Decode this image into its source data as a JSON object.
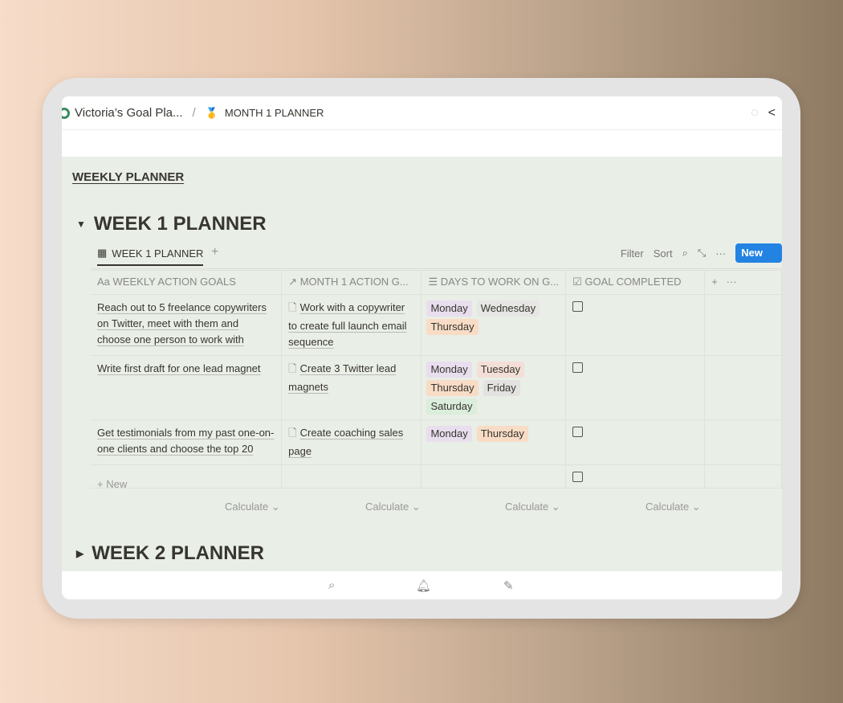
{
  "breadcrumb": {
    "workspace": "Victoria’s Goal Pla...",
    "separator": "/",
    "page_icon": "🥇",
    "page": "MONTH 1 PLANNER"
  },
  "section_link": "WEEKLY PLANNER",
  "week1": {
    "title": "WEEK 1 PLANNER",
    "view_tab": "WEEK 1 PLANNER",
    "toolbar": {
      "filter": "Filter",
      "sort": "Sort",
      "new": "New"
    },
    "columns": [
      {
        "icon": "Aa",
        "label": "WEEKLY ACTION GOALS"
      },
      {
        "icon": "↗",
        "label": "MONTH 1 ACTION G..."
      },
      {
        "icon": "☰",
        "label": "DAYS TO WORK ON G..."
      },
      {
        "icon": "☑",
        "label": "GOAL COMPLETED"
      }
    ],
    "rows": [
      {
        "goal": "Reach out to 5 freelance copywriters on Twitter, meet with them and choose one person to work with",
        "relation": "Work with a copywriter to create full launch email sequence",
        "days": [
          "Monday",
          "Wednesday",
          "Thursday"
        ],
        "completed": false
      },
      {
        "goal": "Write first draft for one lead magnet",
        "relation": "Create 3 Twitter lead magnets",
        "days": [
          "Monday",
          "Tuesday",
          "Thursday",
          "Friday",
          "Saturday"
        ],
        "completed": false
      },
      {
        "goal": "Get testimonials from my past one-on-one clients and choose the top 20",
        "relation": "Create coaching sales page",
        "days": [
          "Monday",
          "Thursday"
        ],
        "completed": false
      },
      {
        "goal": "",
        "relation": "",
        "days": [],
        "completed": false
      }
    ],
    "new_row": "+ New",
    "calculate": "Calculate ⌄"
  },
  "week2": {
    "title": "WEEK 2 PLANNER"
  },
  "day_colors": {
    "Monday": "#e8deee",
    "Tuesday": "#f3dfd8",
    "Wednesday": "#e6e6e4",
    "Thursday": "#f8dcc6",
    "Friday": "#e3e2e0",
    "Saturday": "#dbeddb"
  }
}
